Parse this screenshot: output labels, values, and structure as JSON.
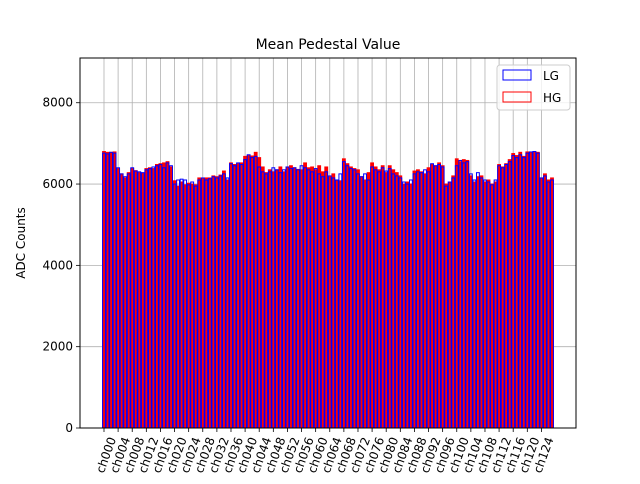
{
  "chart_data": {
    "type": "bar",
    "title": "Mean Pedestal Value",
    "xlabel": "",
    "ylabel": "ADC Counts",
    "ylim": [
      0,
      9100
    ],
    "yticks": [
      0,
      2000,
      4000,
      6000,
      8000
    ],
    "ytick_labels": [
      "0",
      "2000",
      "4000",
      "6000",
      "8000"
    ],
    "xtick_labels": [
      "ch000",
      "ch004",
      "ch008",
      "ch012",
      "ch016",
      "ch020",
      "ch024",
      "ch028",
      "ch032",
      "ch036",
      "ch040",
      "ch044",
      "ch048",
      "ch052",
      "ch056",
      "ch060",
      "ch064",
      "ch068",
      "ch072",
      "ch076",
      "ch080",
      "ch084",
      "ch088",
      "ch092",
      "ch096",
      "ch100",
      "ch104",
      "ch108",
      "ch112",
      "ch116",
      "ch120",
      "ch124"
    ],
    "grid": true,
    "legend_position": "top-right",
    "categories_count": 128,
    "series": [
      {
        "name": "LG",
        "color": "#0000ff",
        "values": [
          6760,
          6740,
          6780,
          6760,
          6400,
          6250,
          6180,
          6250,
          6400,
          6320,
          6300,
          6280,
          6350,
          6380,
          6420,
          6450,
          6480,
          6400,
          6520,
          6450,
          6000,
          6100,
          6120,
          6100,
          5980,
          6050,
          5950,
          6100,
          6150,
          6100,
          6130,
          6180,
          6150,
          6200,
          6250,
          6150,
          6500,
          6450,
          6520,
          6480,
          6600,
          6720,
          6650,
          6680,
          6420,
          6300,
          6250,
          6300,
          6400,
          6350,
          6280,
          6350,
          6420,
          6380,
          6400,
          6350,
          6450,
          6400,
          6350,
          6300,
          6380,
          6250,
          6180,
          6300,
          6200,
          6150,
          6100,
          6250,
          6550,
          6450,
          6380,
          6350,
          6250,
          6180,
          6250,
          6100,
          6420,
          6350,
          6300,
          6400,
          6320,
          6380,
          6250,
          6200,
          6150,
          6050,
          6000,
          6100,
          6250,
          6300,
          6280,
          6350,
          6300,
          6500,
          6450,
          6480,
          6420,
          5950,
          6050,
          6150,
          6450,
          6580,
          6520,
          6550,
          6250,
          6100,
          6280,
          6150,
          6100,
          6050,
          5980,
          6100,
          6450,
          6400,
          6480,
          6550,
          6700,
          6650,
          6720,
          6650,
          6760,
          6790,
          6800,
          6760,
          6150,
          6200,
          6050,
          6100
        ]
      },
      {
        "name": "HG",
        "color": "#ff0000",
        "values": [
          6800,
          6780,
          6780,
          6790,
          6380,
          6250,
          6150,
          6280,
          6380,
          6330,
          6280,
          6260,
          6380,
          6400,
          6380,
          6480,
          6500,
          6520,
          6550,
          6420,
          6080,
          5950,
          6050,
          5980,
          6020,
          6000,
          5980,
          6150,
          6130,
          6150,
          6150,
          6200,
          6180,
          6220,
          6320,
          6100,
          6520,
          6480,
          6500,
          6520,
          6680,
          6700,
          6690,
          6780,
          6650,
          6420,
          6280,
          6350,
          6300,
          6350,
          6420,
          6300,
          6420,
          6450,
          6400,
          6360,
          6350,
          6520,
          6400,
          6420,
          6350,
          6450,
          6300,
          6420,
          6180,
          6250,
          6100,
          6080,
          6620,
          6500,
          6420,
          6380,
          6350,
          6180,
          6100,
          6280,
          6520,
          6420,
          6350,
          6450,
          6280,
          6450,
          6350,
          6280,
          6200,
          6000,
          6050,
          6000,
          6320,
          6350,
          6300,
          6250,
          6400,
          6480,
          6450,
          6520,
          6450,
          6000,
          6050,
          6200,
          6620,
          6550,
          6600,
          6580,
          6200,
          6050,
          6180,
          6200,
          6050,
          6100,
          6000,
          6050,
          6480,
          6420,
          6500,
          6600,
          6750,
          6700,
          6780,
          6680,
          6790,
          6780,
          6800,
          6780,
          6150,
          6250,
          6100,
          6150
        ]
      }
    ]
  }
}
